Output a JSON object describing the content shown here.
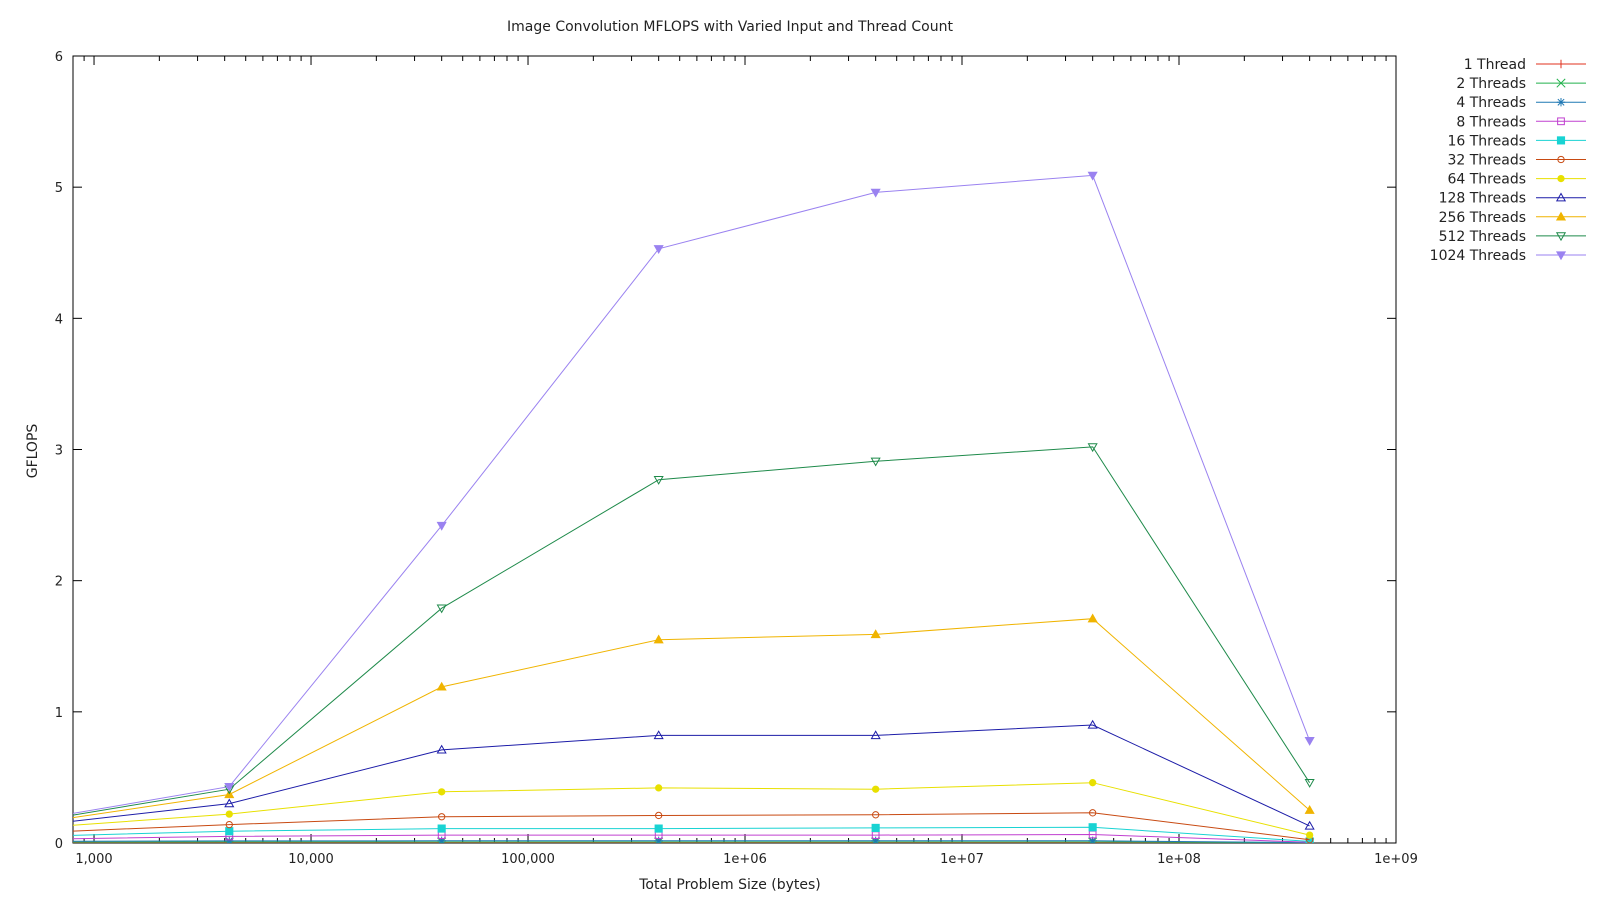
{
  "chart_data": {
    "type": "line",
    "title": "Image Convolution MFLOPS with Varied Input and Thread Count",
    "xlabel": "Total Problem Size (bytes)",
    "ylabel": "GFLOPS",
    "x_scale": "log",
    "xlim": [
      800,
      1000000000
    ],
    "ylim": [
      0,
      6
    ],
    "x_ticks": [
      {
        "value": 1000,
        "label": "1,000"
      },
      {
        "value": 10000,
        "label": "10,000"
      },
      {
        "value": 100000,
        "label": "100,000"
      },
      {
        "value": 1000000,
        "label": "1e+06"
      },
      {
        "value": 10000000,
        "label": "1e+07"
      },
      {
        "value": 100000000,
        "label": "1e+08"
      },
      {
        "value": 1000000000,
        "label": "1e+09"
      }
    ],
    "y_ticks": [
      {
        "value": 0,
        "label": "0"
      },
      {
        "value": 1,
        "label": "1"
      },
      {
        "value": 2,
        "label": "2"
      },
      {
        "value": 3,
        "label": "3"
      },
      {
        "value": 4,
        "label": "4"
      },
      {
        "value": 5,
        "label": "5"
      },
      {
        "value": 6,
        "label": "6"
      }
    ],
    "grid": false,
    "legend_position": "right",
    "x": [
      400,
      4200,
      40000,
      400000,
      4000000,
      40000000,
      400000000
    ],
    "series": [
      {
        "name": "1 Thread",
        "color": "#e0301e",
        "marker": "plus",
        "values": [
          0.003,
          0.004,
          0.004,
          0.004,
          0.004,
          0.004,
          0.001
        ]
      },
      {
        "name": "2 Threads",
        "color": "#22b14c",
        "marker": "cross",
        "values": [
          0.006,
          0.008,
          0.008,
          0.008,
          0.008,
          0.008,
          0.002
        ]
      },
      {
        "name": "4 Threads",
        "color": "#1f78b4",
        "marker": "star",
        "values": [
          0.012,
          0.016,
          0.017,
          0.017,
          0.017,
          0.017,
          0.004
        ]
      },
      {
        "name": "8 Threads",
        "color": "#c040d0",
        "marker": "square",
        "values": [
          0.025,
          0.05,
          0.06,
          0.06,
          0.06,
          0.065,
          0.005
        ]
      },
      {
        "name": "16 Threads",
        "color": "#19d3d3",
        "marker": "square-filled",
        "values": [
          0.045,
          0.09,
          0.11,
          0.11,
          0.115,
          0.12,
          0.012
        ]
      },
      {
        "name": "32 Threads",
        "color": "#c84a12",
        "marker": "circle",
        "values": [
          0.07,
          0.14,
          0.2,
          0.21,
          0.215,
          0.23,
          0.025
        ]
      },
      {
        "name": "64 Threads",
        "color": "#e8e000",
        "marker": "circle-filled",
        "values": [
          0.1,
          0.22,
          0.39,
          0.42,
          0.41,
          0.46,
          0.06
        ]
      },
      {
        "name": "128 Threads",
        "color": "#1c1ca8",
        "marker": "triangle-up",
        "values": [
          0.11,
          0.3,
          0.71,
          0.82,
          0.82,
          0.9,
          0.13
        ]
      },
      {
        "name": "256 Threads",
        "color": "#f0b400",
        "marker": "triangle-up-filled",
        "values": [
          0.12,
          0.37,
          1.19,
          1.55,
          1.59,
          1.71,
          0.25
        ]
      },
      {
        "name": "512 Threads",
        "color": "#1e8a4a",
        "marker": "triangle-down",
        "values": [
          0.13,
          0.41,
          1.79,
          2.77,
          2.91,
          3.02,
          0.46
        ]
      },
      {
        "name": "1024 Threads",
        "color": "#9a82f0",
        "marker": "triangle-down-filled",
        "values": [
          0.14,
          0.43,
          2.42,
          4.53,
          4.96,
          5.09,
          0.78
        ]
      }
    ]
  }
}
